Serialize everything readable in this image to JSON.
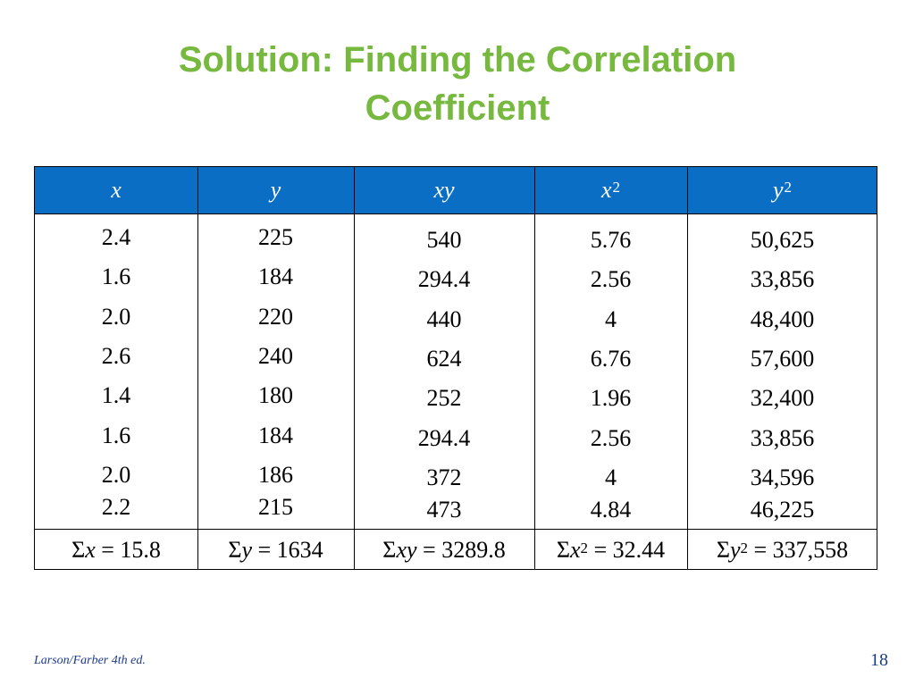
{
  "title": {
    "line1": "Solution: Finding the Correlation",
    "line2": "Coefficient"
  },
  "table": {
    "headers": [
      {
        "var": "x",
        "sup": ""
      },
      {
        "var": "y",
        "sup": ""
      },
      {
        "var": "xy",
        "sup": ""
      },
      {
        "var": "x",
        "sup": "2"
      },
      {
        "var": "y",
        "sup": "2"
      }
    ],
    "columns": [
      [
        "2.4",
        "1.6",
        "2.0",
        "2.6",
        "1.4",
        "1.6",
        "2.0",
        "2.2"
      ],
      [
        "225",
        "184",
        "220",
        "240",
        "180",
        "184",
        "186",
        "215"
      ],
      [
        "540",
        "294.4",
        "440",
        "624",
        "252",
        "294.4",
        "372",
        "473"
      ],
      [
        "5.76",
        "2.56",
        "4",
        "6.76",
        "1.96",
        "2.56",
        "4",
        "4.84"
      ],
      [
        "50,625",
        "33,856",
        "48,400",
        "57,600",
        "32,400",
        "33,856",
        "34,596",
        "46,225"
      ]
    ],
    "sums": [
      {
        "sigma": "Σ",
        "var": "x",
        "sup": "",
        "rest": " = 15.8"
      },
      {
        "sigma": "Σ",
        "var": "y",
        "sup": "",
        "rest": " = 1634"
      },
      {
        "sigma": "Σ",
        "var": "xy",
        "sup": "",
        "rest": " = 3289.8"
      },
      {
        "sigma": "Σ",
        "var": "x",
        "sup": "2",
        "rest": " = 32.44"
      },
      {
        "sigma": "Σ",
        "var": "y",
        "sup": "2",
        "rest": " = 337,558"
      }
    ]
  },
  "footer": {
    "source": "Larson/Farber 4th ed.",
    "page": "18"
  }
}
